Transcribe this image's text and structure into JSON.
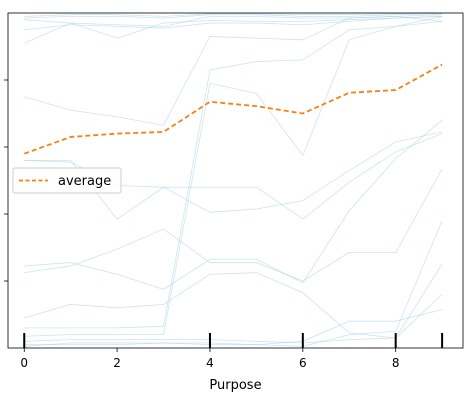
{
  "chart_data": {
    "type": "line",
    "title": "",
    "xlabel": "Purpose",
    "ylabel": "",
    "xlim": [
      -0.35,
      9.45
    ],
    "ylim": [
      0,
      1
    ],
    "x": [
      0,
      1,
      2,
      3,
      4,
      5,
      6,
      7,
      8,
      9
    ],
    "x_ticks": [
      0,
      2,
      4,
      6,
      8
    ],
    "x_tick_labels": [
      "0",
      "2",
      "4",
      "6",
      "8"
    ],
    "y_ticks": [
      0.2,
      0.4,
      0.6,
      0.8
    ],
    "y_tick_labels": [
      "",
      "",
      "",
      ""
    ],
    "rug_positions": [
      0,
      4,
      6,
      8,
      9
    ],
    "grid": false,
    "legend_position": "center-left",
    "average_series": {
      "name": "average",
      "color": "#ff7f0e",
      "values": [
        0.58,
        0.63,
        0.64,
        0.645,
        0.735,
        0.722,
        0.7,
        0.762,
        0.77,
        0.846
      ]
    },
    "ice_color": "#a6cee3",
    "ice_series": [
      [
        0.99,
        0.995,
        0.995,
        0.99,
        0.998,
        0.998,
        0.995,
        0.995,
        0.998,
        1.0
      ],
      [
        0.985,
        0.99,
        0.99,
        0.985,
        0.995,
        0.995,
        0.99,
        0.99,
        0.995,
        0.998
      ],
      [
        0.98,
        0.97,
        0.965,
        0.96,
        0.99,
        0.99,
        0.985,
        0.985,
        0.99,
        0.995
      ],
      [
        0.95,
        0.965,
        0.96,
        0.955,
        0.97,
        0.97,
        0.965,
        0.975,
        0.985,
        0.99
      ],
      [
        0.91,
        0.97,
        0.925,
        0.97,
        0.978,
        0.975,
        0.975,
        0.98,
        0.985,
        0.99
      ],
      [
        0.75,
        0.71,
        0.69,
        0.665,
        0.93,
        0.925,
        0.92,
        0.985,
        0.99,
        0.975
      ],
      [
        0.06,
        0.06,
        0.06,
        0.065,
        0.83,
        0.855,
        0.86,
        0.95,
        0.96,
        0.975
      ],
      [
        0.035,
        0.04,
        0.04,
        0.04,
        0.79,
        0.76,
        0.575,
        0.92,
        0.96,
        0.99
      ],
      [
        0.56,
        0.56,
        0.385,
        0.48,
        0.48,
        0.48,
        0.385,
        0.495,
        0.585,
        0.64
      ],
      [
        0.56,
        0.555,
        0.485,
        0.48,
        0.405,
        0.415,
        0.44,
        0.53,
        0.615,
        0.645
      ],
      [
        0.245,
        0.255,
        0.22,
        0.175,
        0.265,
        0.265,
        0.195,
        0.41,
        0.565,
        0.68
      ],
      [
        0.225,
        0.245,
        0.295,
        0.355,
        0.255,
        0.255,
        0.2,
        0.285,
        0.285,
        0.535
      ],
      [
        0.09,
        0.13,
        0.12,
        0.13,
        0.22,
        0.225,
        0.165,
        0.045,
        0.03,
        0.25
      ],
      [
        0.01,
        0.01,
        0.01,
        0.015,
        0.015,
        0.01,
        0.02,
        0.08,
        0.08,
        0.115
      ],
      [
        0.005,
        0.015,
        0.015,
        0.015,
        0.01,
        0.01,
        0.005,
        0.04,
        0.05,
        0.38
      ],
      [
        0.02,
        0.025,
        0.025,
        0.025,
        0.025,
        0.02,
        0.015,
        0.025,
        0.03,
        0.16
      ]
    ]
  }
}
